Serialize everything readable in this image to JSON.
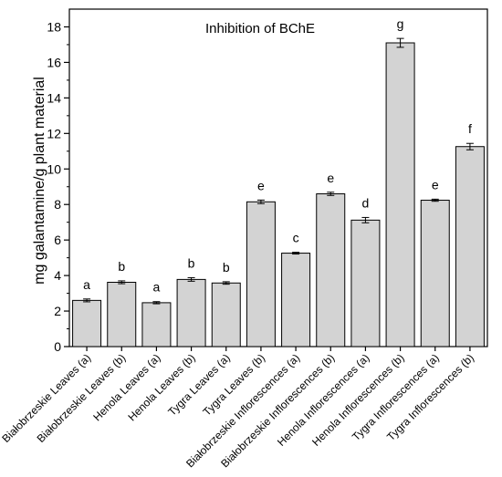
{
  "chart_data": {
    "type": "bar",
    "title": "Inhibition of BChE",
    "xlabel": "",
    "ylabel": "mg galantamine/g plant material",
    "ylim": [
      0,
      19
    ],
    "yticks": [
      0,
      2,
      4,
      6,
      8,
      10,
      12,
      14,
      16,
      18
    ],
    "grid": false,
    "legend": "none",
    "bar_color": "#d3d3d3",
    "categories": [
      "Białobrzeskie Leaves (a)",
      "Białobrzeskie Leaves  (b)",
      "Henola Leaves (a)",
      "Henola Leaves  (b)",
      "Tygra Leaves (a)",
      "Tygra Leaves (b)",
      "Białobrzeskie Inflorescences (a)",
      "Białobrzeskie Inflorescences (b)",
      "Henola Inflorescences (a)",
      "Henola Inflorescences (b)",
      "Tygra Inflorescences (a)",
      "Tygra Inflorescences (b)"
    ],
    "values": [
      2.6,
      3.62,
      2.47,
      3.78,
      3.58,
      8.15,
      5.26,
      8.6,
      7.12,
      17.1,
      8.24,
      11.26
    ],
    "errors": [
      0.08,
      0.08,
      0.06,
      0.1,
      0.07,
      0.1,
      0.05,
      0.09,
      0.15,
      0.25,
      0.06,
      0.18
    ],
    "significance": [
      "a",
      "b",
      "a",
      "b",
      "b",
      "e",
      "c",
      "e",
      "d",
      "g",
      "e",
      "f"
    ]
  }
}
